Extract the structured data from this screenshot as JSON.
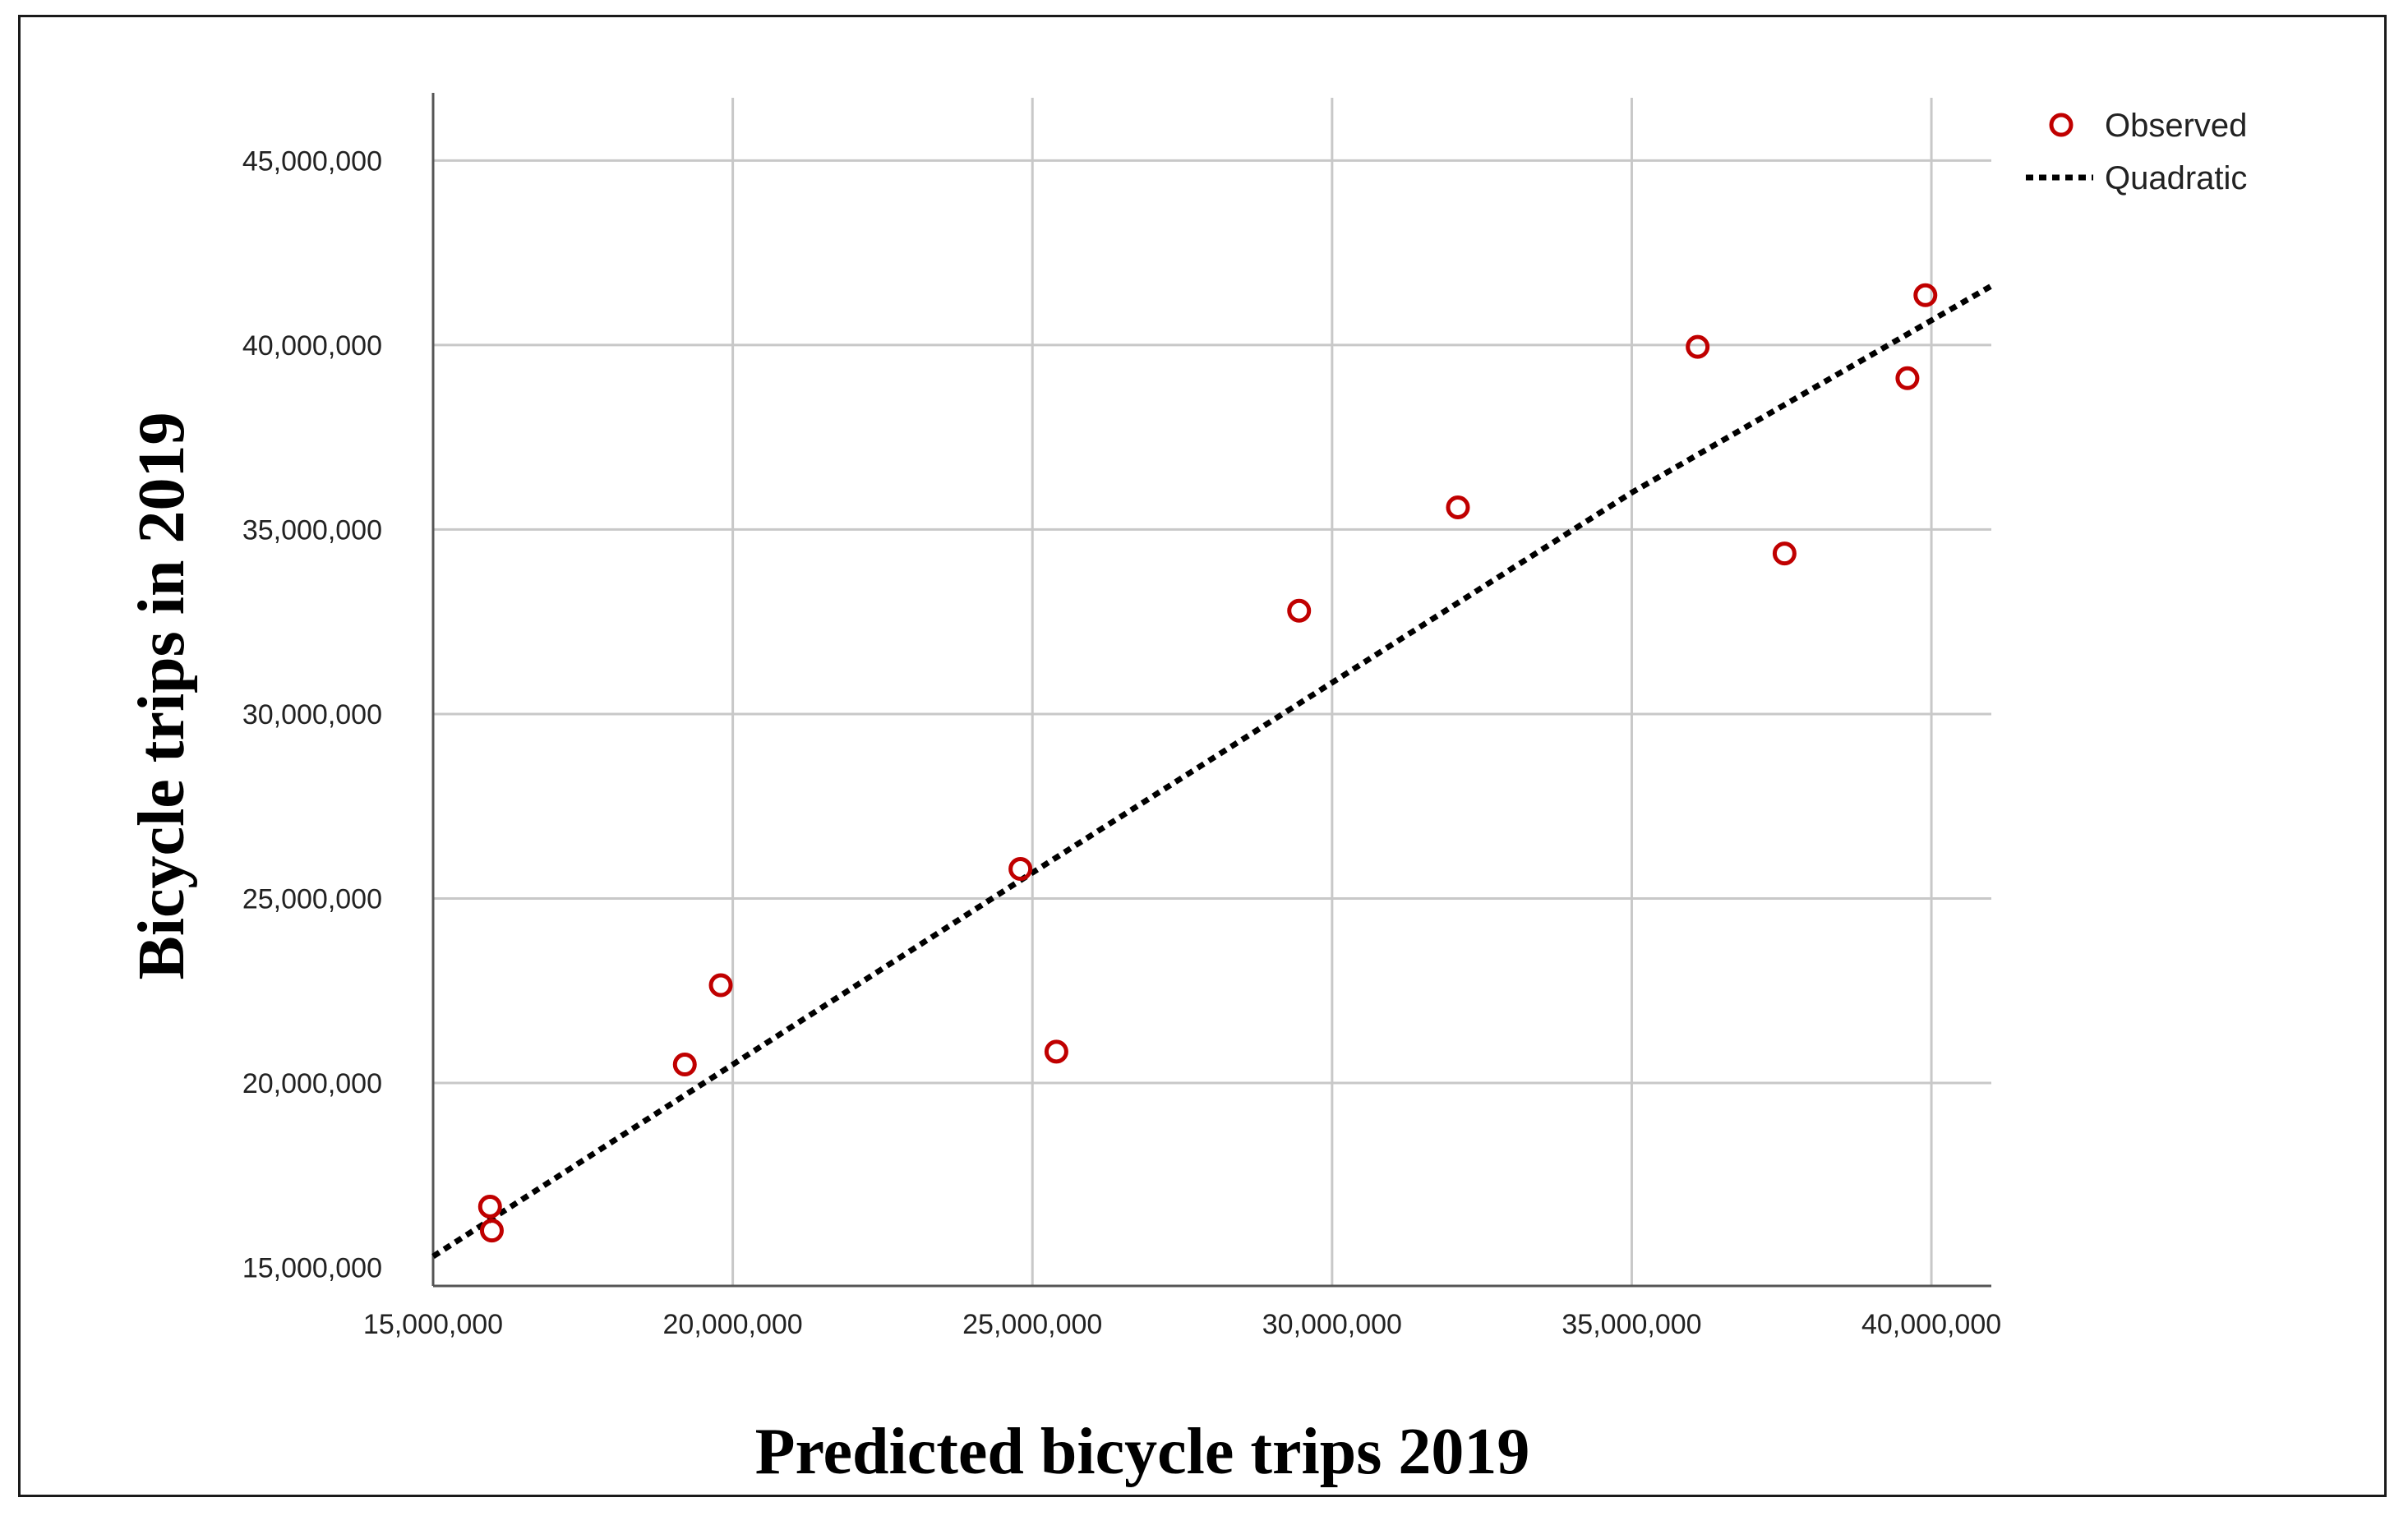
{
  "chart_data": {
    "type": "scatter",
    "title": "",
    "xlabel": "Predicted bicycle trips 2019",
    "ylabel": "Bicycle trips in 2019",
    "xlim": [
      15000000,
      41000000
    ],
    "ylim": [
      14500000,
      46700000
    ],
    "x_ticks": [
      15000000,
      20000000,
      25000000,
      30000000,
      35000000,
      40000000
    ],
    "x_tick_labels": [
      "15,000,000",
      "20,000,000",
      "25,000,000",
      "30,000,000",
      "35,000,000",
      "40,000,000"
    ],
    "y_ticks": [
      15000000,
      20000000,
      25000000,
      30000000,
      35000000,
      40000000,
      45000000
    ],
    "y_tick_labels": [
      "15,000,000",
      "20,000,000",
      "25,000,000",
      "30,000,000",
      "35,000,000",
      "40,000,000",
      "45,000,000"
    ],
    "grid": true,
    "legend": {
      "position": "top-right",
      "entries": [
        {
          "label": "Observed",
          "marker": "circle",
          "color": "#c00000"
        },
        {
          "label": "Quadratic",
          "marker": "dotted-line",
          "color": "#000000"
        }
      ]
    },
    "series": [
      {
        "name": "Observed",
        "type": "scatter",
        "color": "#c00000",
        "x": [
          15950000,
          15980000,
          19200000,
          19800000,
          24800000,
          25400000,
          29450000,
          32100000,
          36100000,
          37550000,
          39600000,
          39900000
        ],
        "y": [
          16650000,
          16000000,
          20500000,
          22650000,
          25800000,
          20850000,
          32800000,
          35600000,
          39950000,
          34350000,
          39100000,
          41350000
        ]
      },
      {
        "name": "Quadratic",
        "type": "line",
        "style": "dotted",
        "color": "#000000",
        "x": [
          15000000,
          20000000,
          25000000,
          30000000,
          35000000,
          41000000
        ],
        "y": [
          15300000,
          20500000,
          25700000,
          30850000,
          36000000,
          41600000
        ]
      }
    ]
  }
}
